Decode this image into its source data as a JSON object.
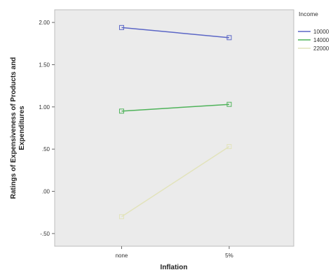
{
  "chart_data": {
    "type": "line",
    "title": "",
    "xlabel": "Inflation",
    "ylabel": "Ratings of Expensiveness of Products and Expenditures",
    "categories": [
      "none",
      "5%"
    ],
    "ylim": [
      -0.65,
      2.15
    ],
    "yticks": [
      2.0,
      1.5,
      1.0,
      0.5,
      0.0,
      -0.5
    ],
    "ytick_labels": [
      "2.00",
      "1.50",
      "1.00",
      ".50",
      ".00",
      "-.50"
    ],
    "grid": false,
    "legend": {
      "title": "Income",
      "placement": "right-top"
    },
    "series": [
      {
        "name": "10000",
        "values": [
          1.94,
          1.82
        ],
        "color": "#5b66c6"
      },
      {
        "name": "14000",
        "values": [
          0.95,
          1.03
        ],
        "color": "#4fb35a"
      },
      {
        "name": "22000",
        "values": [
          -0.3,
          0.53
        ],
        "color": "#e2e3bb"
      }
    ],
    "plot_background": "#ebebeb",
    "marker": "open-square"
  }
}
